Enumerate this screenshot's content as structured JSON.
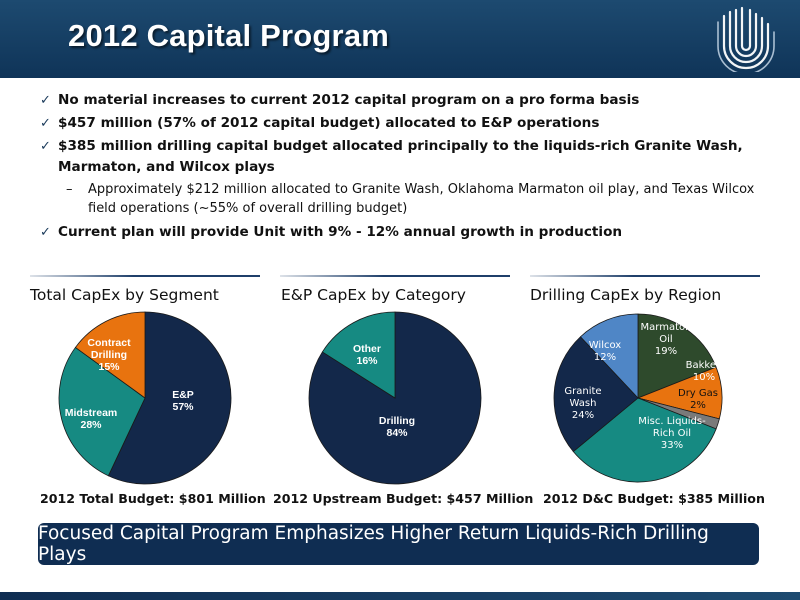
{
  "header": {
    "title": "2012 Capital Program",
    "logo_icon": "unit-corporation-logo-icon"
  },
  "bullets": [
    {
      "type": "main",
      "icon": "checkmark-icon",
      "text": "No material increases to current 2012 capital program on a pro forma basis"
    },
    {
      "type": "main",
      "icon": "checkmark-icon",
      "text": "$457 million (57% of 2012 capital budget) allocated to E&P operations"
    },
    {
      "type": "main",
      "icon": "checkmark-icon",
      "text": "$385 million drilling capital budget allocated principally to the liquids-rich Granite Wash, Marmaton, and Wilcox plays"
    },
    {
      "type": "sub",
      "marker": "–",
      "text": "Approximately $212 million allocated to Granite Wash, Oklahoma Marmaton oil play, and Texas Wilcox field operations (~55% of overall drilling budget)"
    },
    {
      "type": "main",
      "icon": "checkmark-icon",
      "text": "Current plan will provide Unit with 9% - 12% annual growth in production"
    }
  ],
  "check_mark": "✓",
  "chart_data": [
    {
      "type": "pie",
      "title": "Total CapEx by Segment",
      "footer": "2012 Total Budget: $801 Million",
      "slices": [
        {
          "lines": [
            "E&P",
            "57%"
          ],
          "value": 57,
          "color": "#13284a",
          "text_color": "#ffffff"
        },
        {
          "lines": [
            "Midstream",
            "28%"
          ],
          "value": 28,
          "color": "#168a82",
          "text_color": "#ffffff"
        },
        {
          "lines": [
            "Contract",
            "Drilling",
            "15%"
          ],
          "value": 15,
          "color": "#e8730f",
          "text_color": "#ffffff"
        }
      ]
    },
    {
      "type": "pie",
      "title": "E&P CapEx by Category",
      "footer": "2012 Upstream Budget: $457 Million",
      "slices": [
        {
          "lines": [
            "Drilling",
            "84%"
          ],
          "value": 84,
          "color": "#13284a",
          "text_color": "#ffffff"
        },
        {
          "lines": [
            "Other",
            "16%"
          ],
          "value": 16,
          "color": "#168a82",
          "text_color": "#ffffff"
        }
      ]
    },
    {
      "type": "pie",
      "title": "Drilling CapEx by Region",
      "footer": "2012 D&C Budget: $385 Million",
      "slices": [
        {
          "lines": [
            "Marmaton",
            "Oil",
            "19%"
          ],
          "value": 19,
          "color": "#2e4a2c",
          "text_color": "#ffffff"
        },
        {
          "lines": [
            "Bakken",
            "10%"
          ],
          "value": 10,
          "color": "#e8730f",
          "text_color": "#ffffff"
        },
        {
          "lines": [
            "Dry Gas",
            "2%"
          ],
          "value": 2,
          "color": "#7a7a7a",
          "text_color": "#111111"
        },
        {
          "lines": [
            "Misc. Liquids-",
            "Rich Oil",
            "33%"
          ],
          "value": 33,
          "color": "#168a82",
          "text_color": "#ffffff"
        },
        {
          "lines": [
            "Granite",
            "Wash",
            "24%"
          ],
          "value": 24,
          "color": "#13284a",
          "text_color": "#ffffff"
        },
        {
          "lines": [
            "Wilcox",
            "12%"
          ],
          "value": 12,
          "color": "#4f86c6",
          "text_color": "#ffffff"
        }
      ]
    }
  ],
  "banner": "Focused Capital Program Emphasizes Higher Return Liquids-Rich Drilling Plays"
}
